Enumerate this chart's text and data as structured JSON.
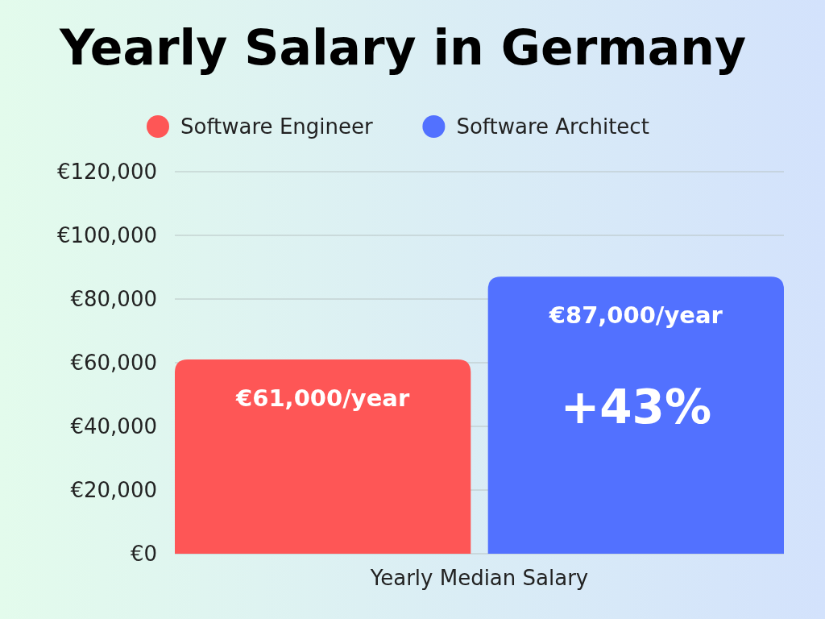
{
  "chart_data": {
    "type": "bar",
    "title": "Yearly Salary in Germany",
    "categories": [
      "Yearly Median Salary"
    ],
    "series": [
      {
        "name": "Software Engineer",
        "color": "#fe5656",
        "values": [
          61000
        ],
        "value_labels": [
          "€61,000/year"
        ]
      },
      {
        "name": "Software Architect",
        "color": "#5271ff",
        "values": [
          87000
        ],
        "value_labels": [
          "€87,000/year"
        ]
      }
    ],
    "annotations": [
      "+43%"
    ],
    "ylim": [
      0,
      120000
    ],
    "yticks": [
      {
        "value": 0,
        "label": "€0"
      },
      {
        "value": 20000,
        "label": "€20,000"
      },
      {
        "value": 40000,
        "label": "€40,000"
      },
      {
        "value": 60000,
        "label": "€60,000"
      },
      {
        "value": 80000,
        "label": "€80,000"
      },
      {
        "value": 100000,
        "label": "€100,000"
      },
      {
        "value": 120000,
        "label": "€120,000"
      }
    ],
    "grid": "y",
    "legend": "top"
  }
}
